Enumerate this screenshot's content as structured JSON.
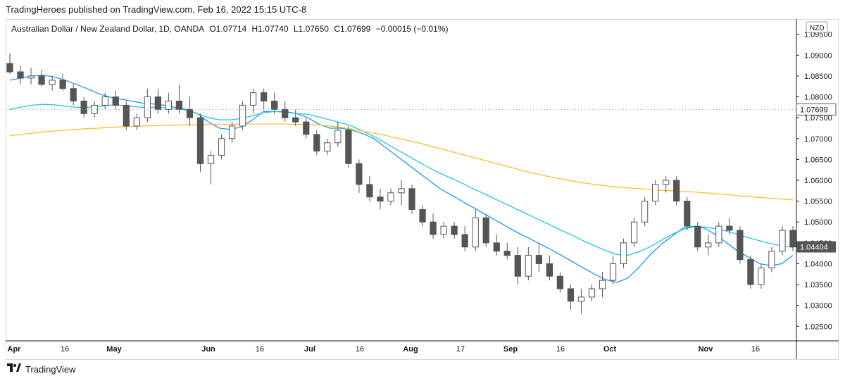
{
  "header": {
    "published_line": "TradingHeroes published on TradingView.com, Feb 16, 2022 15:15 UTC-8"
  },
  "legend": {
    "symbol": "Australian Dollar / New Zealand Dollar, 1D, OANDA",
    "open": "O1.07714",
    "high": "H1.07740",
    "low": "L1.07650",
    "close": "C1.07699",
    "change": "−0.00015 (−0.01%)"
  },
  "footer": {
    "brand": "TradingView",
    "logo_icon": "tradingview-logo-icon"
  },
  "colors": {
    "ma_fast": "#2196f3",
    "ma_mid": "#26c6da",
    "ma_slow": "#fbc02d",
    "candle_body_down": "#555555",
    "candle_body_up": "#ffffff",
    "wick": "#555555",
    "last_price_badge_bg": "#555555",
    "last_price_badge_text": "#ffffff"
  },
  "chart_data": {
    "type": "candlestick",
    "currency_label": "NZD",
    "x_tick_labels": [
      "Apr",
      "16",
      "May",
      "Jun",
      "16",
      "Jul",
      "16",
      "Aug",
      "17",
      "Sep",
      "16",
      "Oct",
      "Nov",
      "16"
    ],
    "y_tick_labels": [
      "1.09500",
      "1.09000",
      "1.08500",
      "1.08000",
      "1.07500",
      "1.07000",
      "1.06500",
      "1.06000",
      "1.05500",
      "1.05000",
      "1.04500",
      "1.04000",
      "1.03500",
      "1.03000",
      "1.02500"
    ],
    "ylim": [
      1.0215,
      1.0985
    ],
    "price_line_label": "1.07699",
    "price_line_value": 1.07699,
    "last_price_label": "1.04404",
    "last_price_value": 1.04404,
    "moving_averages": [
      {
        "values": [
          1.084,
          1.0845,
          1.085,
          1.0852,
          1.0848,
          1.084,
          1.083,
          1.082,
          1.0808,
          1.08,
          1.0795,
          1.079,
          1.0785,
          1.0783,
          1.078,
          1.0775,
          1.077,
          1.076,
          1.074,
          1.0725,
          1.0722,
          1.0728,
          1.0745,
          1.0765,
          1.0765,
          1.0765,
          1.076,
          1.075,
          1.0735,
          1.0725,
          1.0725,
          1.072,
          1.0712,
          1.07,
          1.068,
          1.066,
          1.064,
          1.062,
          1.06,
          1.058,
          1.0565,
          1.055,
          1.0535,
          1.052,
          1.0505,
          1.049,
          1.0475,
          1.0462,
          1.0448,
          1.0435,
          1.042,
          1.0405,
          1.039,
          1.0375,
          1.0362,
          1.0355,
          1.0365,
          1.039,
          1.042,
          1.0445,
          1.0465,
          1.0485,
          1.049,
          1.0485,
          1.047,
          1.045,
          1.043,
          1.0415,
          1.04,
          1.0395,
          1.04,
          1.042
        ]
      },
      {
        "values": [
          1.077,
          1.0775,
          1.078,
          1.0782,
          1.0781,
          1.0778,
          1.0775,
          1.0775,
          1.0777,
          1.078,
          1.078,
          1.0777,
          1.0775,
          1.0775,
          1.0774,
          1.0772,
          1.0768,
          1.076,
          1.075,
          1.0745,
          1.0745,
          1.0748,
          1.0755,
          1.0762,
          1.0765,
          1.0763,
          1.076,
          1.0758,
          1.0752,
          1.0745,
          1.0738,
          1.073,
          1.0718,
          1.0705,
          1.069,
          1.0675,
          1.066,
          1.0645,
          1.063,
          1.0617,
          1.0605,
          1.0593,
          1.058,
          1.0568,
          1.0555,
          1.0543,
          1.053,
          1.0518,
          1.0505,
          1.0493,
          1.048,
          1.0468,
          1.0455,
          1.0443,
          1.0432,
          1.0422,
          1.042,
          1.0428,
          1.044,
          1.0455,
          1.047,
          1.0482,
          1.0488,
          1.0488,
          1.0484,
          1.0478,
          1.047,
          1.0462,
          1.0455,
          1.0448,
          1.0443,
          1.044
        ]
      },
      {
        "values": [
          1.0707,
          1.071,
          1.0713,
          1.0716,
          1.0718,
          1.072,
          1.0722,
          1.0724,
          1.0725,
          1.0727,
          1.0728,
          1.0729,
          1.073,
          1.0731,
          1.0732,
          1.0732,
          1.0733,
          1.0733,
          1.0734,
          1.0734,
          1.0734,
          1.0735,
          1.0735,
          1.0735,
          1.0735,
          1.0735,
          1.0734,
          1.0734,
          1.0733,
          1.073,
          1.0727,
          1.0723,
          1.0718,
          1.0713,
          1.0708,
          1.0702,
          1.0696,
          1.069,
          1.0683,
          1.0676,
          1.0669,
          1.0662,
          1.0655,
          1.0648,
          1.0641,
          1.0634,
          1.0627,
          1.062,
          1.0614,
          1.0608,
          1.0603,
          1.0598,
          1.0594,
          1.059,
          1.0587,
          1.0584,
          1.0582,
          1.058,
          1.0578,
          1.0576,
          1.0575,
          1.0573,
          1.0572,
          1.057,
          1.0568,
          1.0566,
          1.0563,
          1.0561,
          1.0559,
          1.0557,
          1.0555,
          1.0553
        ]
      }
    ],
    "candles": [
      [
        1.088,
        1.0905,
        1.0855,
        1.086
      ],
      [
        1.086,
        1.0875,
        1.083,
        1.0845
      ],
      [
        1.0845,
        1.087,
        1.083,
        1.085
      ],
      [
        1.085,
        1.0865,
        1.0825,
        1.083
      ],
      [
        1.083,
        1.085,
        1.0815,
        1.084
      ],
      [
        1.084,
        1.0855,
        1.0815,
        1.082
      ],
      [
        1.082,
        1.083,
        1.078,
        1.079
      ],
      [
        1.079,
        1.08,
        1.075,
        1.076
      ],
      [
        1.076,
        1.079,
        1.075,
        1.078
      ],
      [
        1.078,
        1.081,
        1.077,
        1.08
      ],
      [
        1.08,
        1.0815,
        1.077,
        1.078
      ],
      [
        1.078,
        1.079,
        1.072,
        1.073
      ],
      [
        1.073,
        1.076,
        1.072,
        1.075
      ],
      [
        1.075,
        1.082,
        1.074,
        1.08
      ],
      [
        1.08,
        1.082,
        1.076,
        1.077
      ],
      [
        1.077,
        1.081,
        1.076,
        1.079
      ],
      [
        1.079,
        1.083,
        1.076,
        1.077
      ],
      [
        1.077,
        1.08,
        1.073,
        1.075
      ],
      [
        1.075,
        1.076,
        1.062,
        1.064
      ],
      [
        1.064,
        1.067,
        1.059,
        1.066
      ],
      [
        1.066,
        1.071,
        1.065,
        1.07
      ],
      [
        1.07,
        1.074,
        1.069,
        1.073
      ],
      [
        1.073,
        1.079,
        1.072,
        1.078
      ],
      [
        1.078,
        1.082,
        1.076,
        1.081
      ],
      [
        1.081,
        1.082,
        1.077,
        1.079
      ],
      [
        1.079,
        1.081,
        1.076,
        1.077
      ],
      [
        1.077,
        1.079,
        1.074,
        1.075
      ],
      [
        1.075,
        1.077,
        1.073,
        1.074
      ],
      [
        1.074,
        1.075,
        1.07,
        1.071
      ],
      [
        1.071,
        1.072,
        1.066,
        1.067
      ],
      [
        1.067,
        1.07,
        1.066,
        1.069
      ],
      [
        1.069,
        1.074,
        1.068,
        1.072
      ],
      [
        1.072,
        1.073,
        1.063,
        1.064
      ],
      [
        1.064,
        1.065,
        1.057,
        1.059
      ],
      [
        1.059,
        1.061,
        1.055,
        1.056
      ],
      [
        1.056,
        1.058,
        1.053,
        1.055
      ],
      [
        1.055,
        1.058,
        1.054,
        1.057
      ],
      [
        1.057,
        1.06,
        1.054,
        1.058
      ],
      [
        1.058,
        1.059,
        1.052,
        1.053
      ],
      [
        1.053,
        1.054,
        1.049,
        1.05
      ],
      [
        1.05,
        1.052,
        1.046,
        1.047
      ],
      [
        1.047,
        1.05,
        1.046,
        1.049
      ],
      [
        1.049,
        1.05,
        1.046,
        1.047
      ],
      [
        1.047,
        1.049,
        1.043,
        1.044
      ],
      [
        1.044,
        1.053,
        1.043,
        1.051
      ],
      [
        1.051,
        1.052,
        1.044,
        1.045
      ],
      [
        1.045,
        1.047,
        1.042,
        1.043
      ],
      [
        1.043,
        1.045,
        1.041,
        1.042
      ],
      [
        1.042,
        1.044,
        1.035,
        1.037
      ],
      [
        1.037,
        1.044,
        1.036,
        1.042
      ],
      [
        1.042,
        1.045,
        1.038,
        1.04
      ],
      [
        1.04,
        1.042,
        1.036,
        1.037
      ],
      [
        1.037,
        1.038,
        1.033,
        1.034
      ],
      [
        1.034,
        1.035,
        1.029,
        1.031
      ],
      [
        1.031,
        1.034,
        1.028,
        1.032
      ],
      [
        1.032,
        1.035,
        1.031,
        1.034
      ],
      [
        1.034,
        1.038,
        1.032,
        1.036
      ],
      [
        1.036,
        1.042,
        1.035,
        1.04
      ],
      [
        1.04,
        1.046,
        1.039,
        1.045
      ],
      [
        1.045,
        1.051,
        1.044,
        1.05
      ],
      [
        1.05,
        1.056,
        1.049,
        1.055
      ],
      [
        1.055,
        1.06,
        1.054,
        1.059
      ],
      [
        1.059,
        1.061,
        1.057,
        1.06
      ],
      [
        1.06,
        1.061,
        1.054,
        1.055
      ],
      [
        1.055,
        1.056,
        1.048,
        1.049
      ],
      [
        1.049,
        1.05,
        1.043,
        1.044
      ],
      [
        1.044,
        1.047,
        1.042,
        1.045
      ],
      [
        1.045,
        1.05,
        1.044,
        1.049
      ],
      [
        1.049,
        1.051,
        1.047,
        1.048
      ],
      [
        1.048,
        1.049,
        1.04,
        1.041
      ],
      [
        1.041,
        1.042,
        1.034,
        1.035
      ],
      [
        1.035,
        1.04,
        1.034,
        1.039
      ],
      [
        1.039,
        1.044,
        1.038,
        1.043
      ],
      [
        1.043,
        1.049,
        1.042,
        1.048
      ],
      [
        1.048,
        1.049,
        1.043,
        1.044
      ]
    ]
  }
}
